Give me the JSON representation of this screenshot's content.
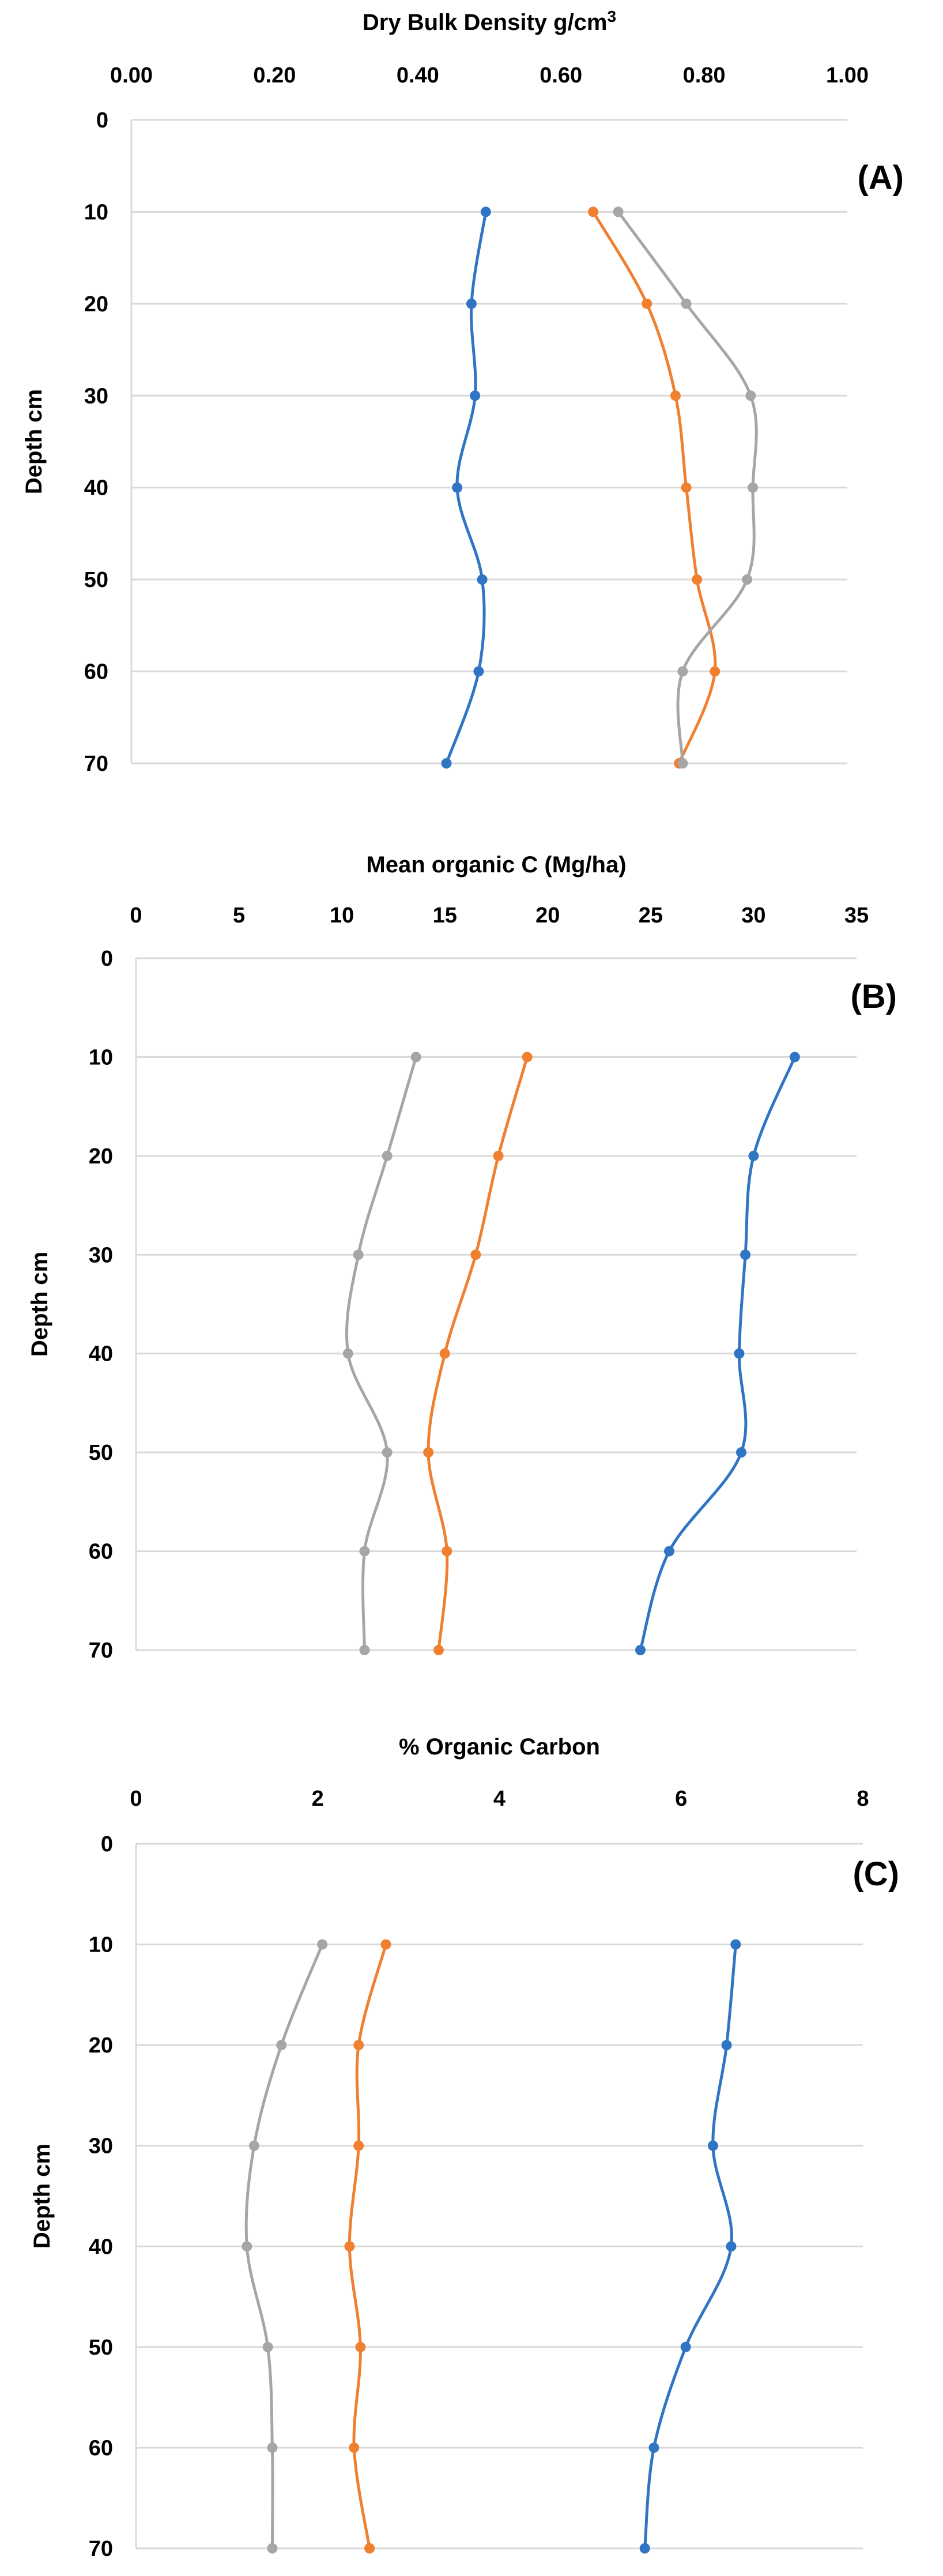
{
  "chart_data": [
    {
      "type": "line",
      "panel_label": "(A)",
      "title": "Dry Bulk Density g/cm",
      "title_superscript": "3",
      "xlabel": "Dry Bulk Density g/cm3",
      "ylabel": "Depth cm",
      "xlim": [
        0,
        1
      ],
      "ylim": [
        0,
        70
      ],
      "x_ticks": [
        "0.00",
        "0.20",
        "0.40",
        "0.60",
        "0.80",
        "1.00"
      ],
      "y_ticks": [
        "0",
        "10",
        "20",
        "30",
        "40",
        "50",
        "60",
        "70"
      ],
      "depths": [
        10,
        20,
        30,
        40,
        50,
        60,
        70
      ],
      "series": [
        {
          "name": "blue",
          "color": "#2f75c4",
          "values": [
            0.495,
            0.475,
            0.48,
            0.455,
            0.49,
            0.485,
            0.44
          ]
        },
        {
          "name": "orange",
          "color": "#f07f2f",
          "values": [
            0.645,
            0.72,
            0.76,
            0.775,
            0.79,
            0.815,
            0.765
          ]
        },
        {
          "name": "gray",
          "color": "#a6a6a6",
          "values": [
            0.68,
            0.775,
            0.865,
            0.868,
            0.86,
            0.77,
            0.77
          ]
        }
      ]
    },
    {
      "type": "line",
      "panel_label": "(B)",
      "title": "Mean organic C (Mg/ha)",
      "xlabel": "Mean organic C (Mg/ha)",
      "ylabel": "Depth cm",
      "xlim": [
        0,
        35
      ],
      "ylim": [
        0,
        70
      ],
      "x_ticks": [
        "0",
        "5",
        "10",
        "15",
        "20",
        "25",
        "30",
        "35"
      ],
      "y_ticks": [
        "0",
        "10",
        "20",
        "30",
        "40",
        "50",
        "60",
        "70"
      ],
      "depths": [
        10,
        20,
        30,
        40,
        50,
        60,
        70
      ],
      "series": [
        {
          "name": "blue",
          "color": "#2f75c4",
          "values": [
            32.0,
            30.0,
            29.6,
            29.3,
            29.4,
            25.9,
            24.5
          ]
        },
        {
          "name": "orange",
          "color": "#f07f2f",
          "values": [
            19.0,
            17.6,
            16.5,
            15.0,
            14.2,
            15.1,
            14.7
          ]
        },
        {
          "name": "gray",
          "color": "#a6a6a6",
          "values": [
            13.6,
            12.2,
            10.8,
            10.3,
            12.2,
            11.1,
            11.1
          ]
        }
      ]
    },
    {
      "type": "line",
      "panel_label": "(C)",
      "title": "% Organic Carbon",
      "xlabel": "% Organic Carbon",
      "ylabel": "Depth cm",
      "xlim": [
        0,
        8
      ],
      "ylim": [
        0,
        70
      ],
      "x_ticks": [
        "0",
        "2",
        "4",
        "6",
        "8"
      ],
      "y_ticks": [
        "0",
        "10",
        "20",
        "30",
        "40",
        "50",
        "60",
        "70"
      ],
      "depths": [
        10,
        20,
        30,
        40,
        50,
        60,
        70
      ],
      "series": [
        {
          "name": "blue",
          "color": "#2f75c4",
          "values": [
            6.6,
            6.5,
            6.35,
            6.55,
            6.05,
            5.7,
            5.6
          ]
        },
        {
          "name": "orange",
          "color": "#f07f2f",
          "values": [
            2.75,
            2.45,
            2.45,
            2.35,
            2.47,
            2.4,
            2.57
          ]
        },
        {
          "name": "gray",
          "color": "#a6a6a6",
          "values": [
            2.05,
            1.6,
            1.3,
            1.22,
            1.45,
            1.5,
            1.5
          ]
        }
      ]
    }
  ]
}
